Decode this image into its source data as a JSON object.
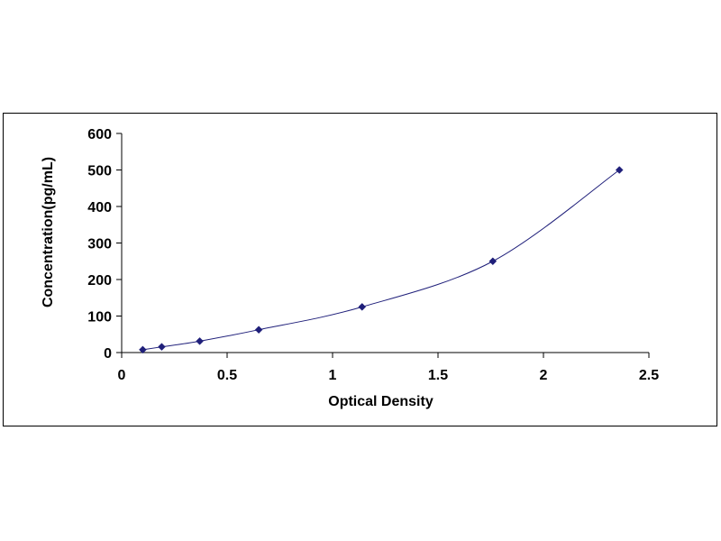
{
  "chart_data": {
    "type": "scatter",
    "title": "",
    "xlabel": "Optical Density",
    "ylabel": "Concentration(pg/mL)",
    "xlim": [
      0,
      2.5
    ],
    "ylim": [
      0,
      600
    ],
    "x_ticks": [
      "0",
      "0.5",
      "1",
      "1.5",
      "2",
      "2.5"
    ],
    "y_ticks": [
      "0",
      "100",
      "200",
      "300",
      "400",
      "500",
      "600"
    ],
    "grid": false,
    "legend": "none",
    "series": [
      {
        "x": [
          0.1,
          0.19,
          0.37,
          0.65,
          1.14,
          1.76,
          2.36
        ],
        "y": [
          7.8,
          15.6,
          31.25,
          62.5,
          125,
          250,
          500
        ],
        "marker": "diamond",
        "color": "#1f1f7a",
        "fit_line": "smooth curve"
      }
    ]
  }
}
